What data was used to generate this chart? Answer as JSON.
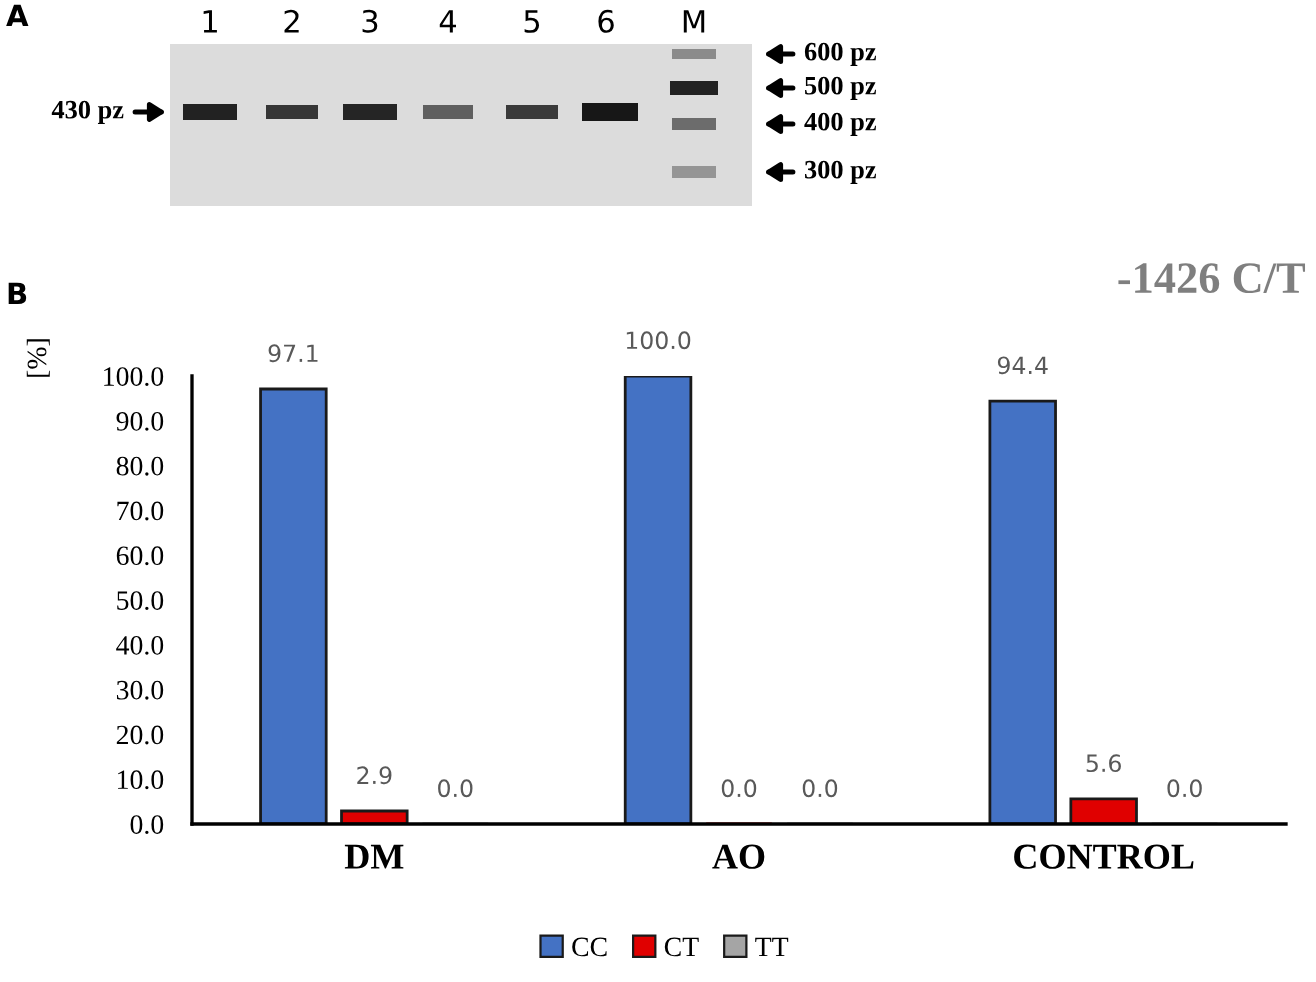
{
  "chart_data": {
    "type": "bar",
    "title": "-1426 C/T",
    "ylabel": "[%]",
    "categories": [
      "DM",
      "AO",
      "CONTROL"
    ],
    "series": [
      {
        "name": "CC",
        "color": "#4472c4",
        "values": [
          97.1,
          100.0,
          94.4
        ],
        "value_labels": [
          "97.1",
          "100.0",
          "94.4"
        ]
      },
      {
        "name": "CT",
        "color": "#e00000",
        "values": [
          2.9,
          0.0,
          5.6
        ],
        "value_labels": [
          "2.9",
          "0.0",
          "5.6"
        ]
      },
      {
        "name": "TT",
        "color": "#a5a5a5",
        "values": [
          0.0,
          0.0,
          0.0
        ],
        "value_labels": [
          "0.0",
          "0.0",
          "0.0"
        ]
      }
    ],
    "ylim": [
      0,
      100
    ],
    "yticks": [
      {
        "value": 0,
        "label": "0.0"
      },
      {
        "value": 10,
        "label": "10.0"
      },
      {
        "value": 20,
        "label": "20.0"
      },
      {
        "value": 30,
        "label": "30.0"
      },
      {
        "value": 40,
        "label": "40.0"
      },
      {
        "value": 50,
        "label": "50.0"
      },
      {
        "value": 60,
        "label": "60.0"
      },
      {
        "value": 70,
        "label": "70.0"
      },
      {
        "value": 80,
        "label": "80.0"
      },
      {
        "value": 90,
        "label": "90.0"
      },
      {
        "value": 100,
        "label": "100.0"
      }
    ],
    "legend": "bottom",
    "annotations": [
      "A",
      "1",
      "2",
      "3",
      "4",
      "5",
      "6",
      "M",
      "430 pz",
      "600 pz",
      "500 pz",
      "400 pz",
      "300 pz",
      "B"
    ]
  }
}
